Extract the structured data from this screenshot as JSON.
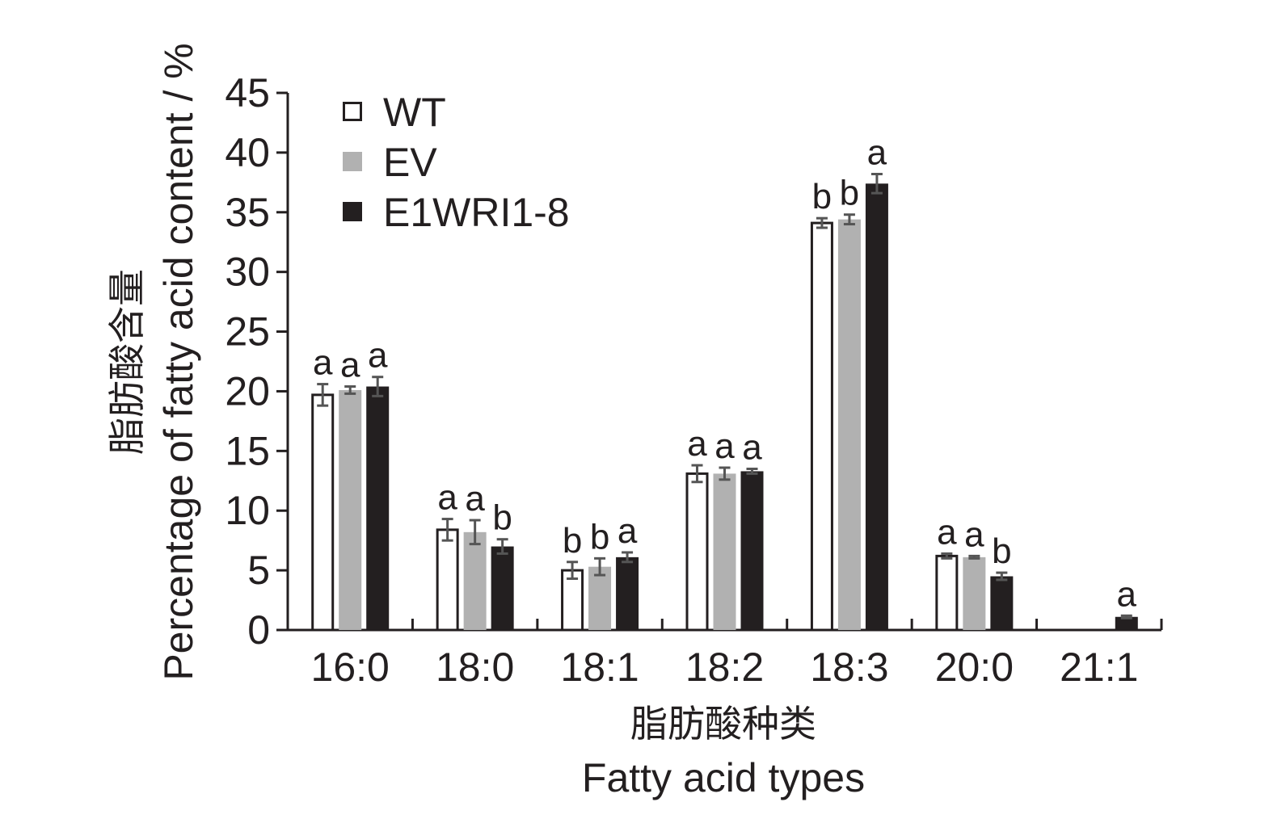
{
  "chart_data": {
    "type": "bar",
    "title": "",
    "xlabel_cn": "脂肪酸种类",
    "xlabel": "Fatty acid types",
    "ylabel_cn": "脂肪酸含量",
    "ylabel": "Percentage of fatty acid content / %",
    "ylim": [
      0,
      45
    ],
    "yticks": [
      "0",
      "5",
      "10",
      "15",
      "20",
      "25",
      "30",
      "35",
      "40",
      "45"
    ],
    "grid": false,
    "legend_position": "top-left",
    "categories": [
      "16:0",
      "18:0",
      "18:1",
      "18:2",
      "18:3",
      "20:0",
      "21:1"
    ],
    "series": [
      {
        "name": "WT",
        "color": "#ffffff",
        "stroke": "#231f20",
        "values": [
          19.7,
          8.4,
          5.0,
          13.1,
          34.1,
          6.2,
          null
        ],
        "errors": [
          0.9,
          0.9,
          0.7,
          0.7,
          0.4,
          0.2,
          null
        ],
        "labels": [
          "a",
          "a",
          "b",
          "a",
          "b",
          "a",
          ""
        ]
      },
      {
        "name": "EV",
        "color": "#b1b1b1",
        "stroke": "#b1b1b1",
        "values": [
          20.1,
          8.2,
          5.3,
          13.1,
          34.4,
          6.1,
          null
        ],
        "errors": [
          0.3,
          1.0,
          0.7,
          0.5,
          0.4,
          0.1,
          null
        ],
        "labels": [
          "a",
          "a",
          "b",
          "a",
          "b",
          "a",
          ""
        ]
      },
      {
        "name": "E1WRI1-8",
        "color": "#231f20",
        "stroke": "#231f20",
        "values": [
          20.4,
          7.0,
          6.1,
          13.3,
          37.4,
          4.5,
          1.1
        ],
        "errors": [
          0.8,
          0.6,
          0.4,
          0.2,
          0.8,
          0.3,
          0.1
        ],
        "labels": [
          "a",
          "b",
          "a",
          "a",
          "a",
          "b",
          "a"
        ]
      }
    ],
    "colors": {
      "axis": "#231f20",
      "errorbar": "#555555"
    }
  }
}
